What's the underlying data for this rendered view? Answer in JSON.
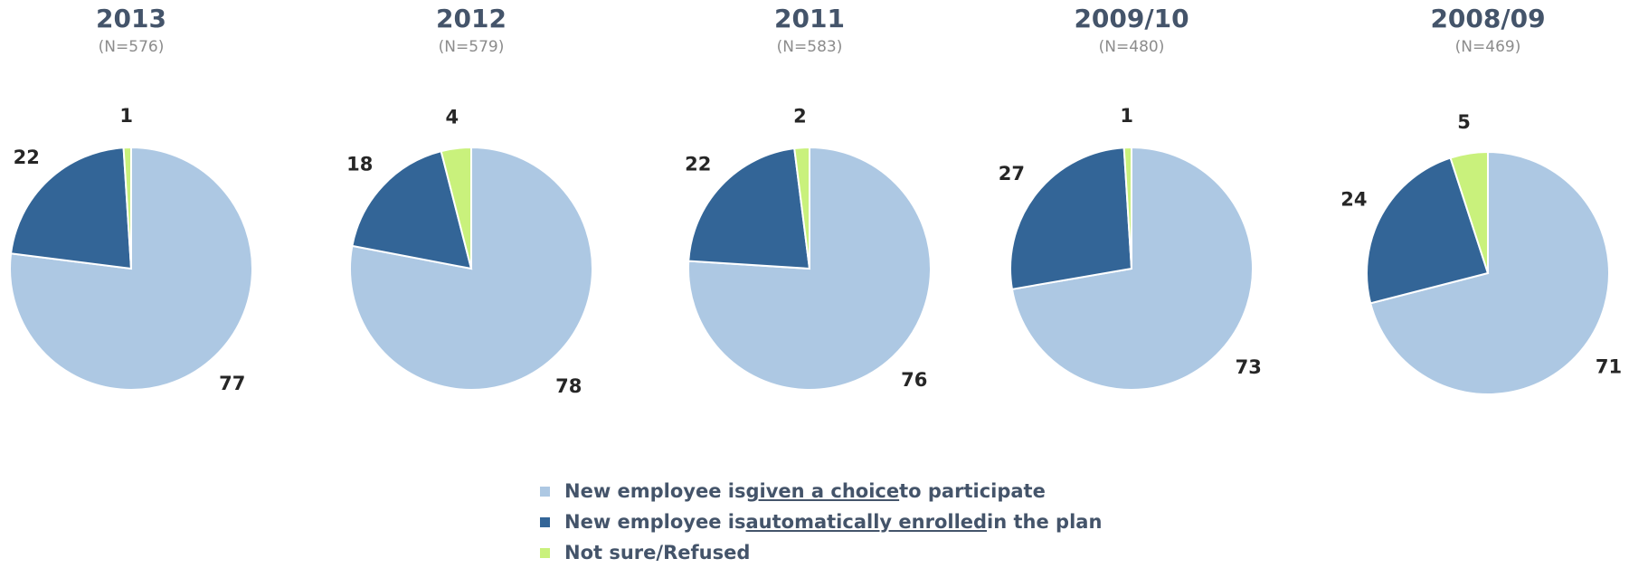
{
  "colors": {
    "choice": "#adc8e3",
    "auto": "#336597",
    "unsure": "#c9f17c",
    "title": "#44546a",
    "n_label": "#8c8c8c",
    "data_label": "#262626"
  },
  "legend": [
    {
      "series": "choice",
      "pre": "New employee is ",
      "underlined": "given a choice",
      "post": " to participate"
    },
    {
      "series": "auto",
      "pre": "New employee is ",
      "underlined": "automatically enrolled",
      "post": " in the plan"
    },
    {
      "series": "unsure",
      "pre": "",
      "underlined": "",
      "post": "Not sure/Refused"
    }
  ],
  "chart_data": [
    {
      "type": "pie",
      "title": "2013",
      "subtitle": "(N=576)",
      "slices": [
        {
          "series": "choice",
          "value": 77
        },
        {
          "series": "auto",
          "value": 22
        },
        {
          "series": "unsure",
          "value": 1
        }
      ]
    },
    {
      "type": "pie",
      "title": "2012",
      "subtitle": "(N=579)",
      "slices": [
        {
          "series": "choice",
          "value": 78
        },
        {
          "series": "auto",
          "value": 18
        },
        {
          "series": "unsure",
          "value": 4
        }
      ]
    },
    {
      "type": "pie",
      "title": "2011",
      "subtitle": "(N=583)",
      "slices": [
        {
          "series": "choice",
          "value": 76
        },
        {
          "series": "auto",
          "value": 22
        },
        {
          "series": "unsure",
          "value": 2
        }
      ]
    },
    {
      "type": "pie",
      "title": "2009/10",
      "subtitle": "(N=480)",
      "slices": [
        {
          "series": "choice",
          "value": 73
        },
        {
          "series": "auto",
          "value": 27
        },
        {
          "series": "unsure",
          "value": 1
        }
      ]
    },
    {
      "type": "pie",
      "title": "2008/09",
      "subtitle": "(N=469)",
      "slices": [
        {
          "series": "choice",
          "value": 71
        },
        {
          "series": "auto",
          "value": 24
        },
        {
          "series": "unsure",
          "value": 5
        }
      ]
    }
  ]
}
